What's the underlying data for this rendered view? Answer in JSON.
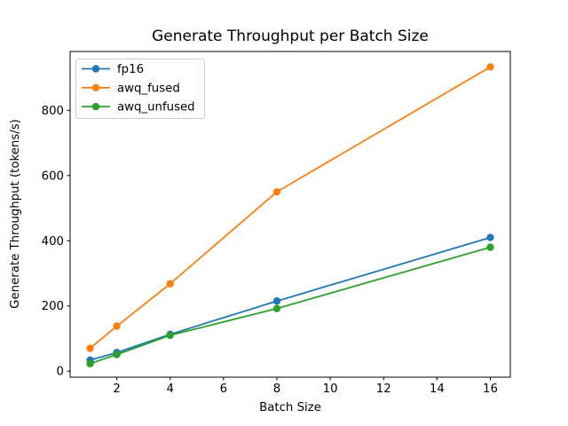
{
  "chart_data": {
    "type": "line",
    "title": "Generate Throughput per Batch Size",
    "xlabel": "Batch Size",
    "ylabel": "Generate Throughput (tokens/s)",
    "x": [
      1,
      2,
      4,
      8,
      16
    ],
    "series": [
      {
        "name": "fp16",
        "color": "#1f77b4",
        "values": [
          34,
          57,
          113,
          215,
          410
        ]
      },
      {
        "name": "awq_fused",
        "color": "#ff7f0e",
        "values": [
          70,
          138,
          268,
          550,
          933
        ]
      },
      {
        "name": "awq_unfused",
        "color": "#2ca02c",
        "values": [
          23,
          51,
          110,
          192,
          380
        ]
      }
    ],
    "xticks": [
      2,
      4,
      6,
      8,
      10,
      12,
      14,
      16
    ],
    "yticks": [
      0,
      200,
      400,
      600,
      800
    ],
    "xlim": [
      0.25,
      16.75
    ],
    "ylim": [
      -18.5,
      980.5
    ],
    "grid": false,
    "marker": "o",
    "legend_position": "upper-left",
    "frame_color": "#000000",
    "legend_border_color": "#cccccc",
    "background_color": "#ffffff"
  }
}
